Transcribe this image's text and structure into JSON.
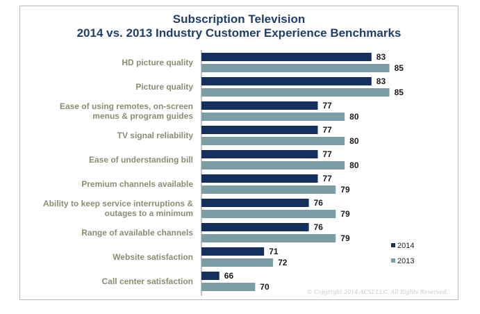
{
  "chart_data": {
    "type": "bar",
    "orientation": "horizontal",
    "title": "Subscription Television",
    "subtitle": "2014 vs. 2013 Industry Customer Experience Benchmarks",
    "categories": [
      [
        "HD picture quality"
      ],
      [
        "Picture quality"
      ],
      [
        "Ease of using remotes, on-screen",
        "menus & program guides"
      ],
      [
        "TV signal reliability"
      ],
      [
        "Ease of understanding bill"
      ],
      [
        "Premium channels available"
      ],
      [
        "Ability to keep service interruptions &",
        "outages to a minimum"
      ],
      [
        "Range of available channels"
      ],
      [
        "Website satisfaction"
      ],
      [
        "Call center satisfaction"
      ]
    ],
    "series": [
      {
        "name": "2014",
        "color": "#13305e",
        "values": [
          83,
          83,
          77,
          77,
          77,
          77,
          76,
          76,
          71,
          66
        ]
      },
      {
        "name": "2013",
        "color": "#7b9ea6",
        "values": [
          85,
          85,
          80,
          80,
          80,
          79,
          79,
          79,
          72,
          70
        ]
      }
    ],
    "xlim": [
      64,
      90
    ],
    "grid": false,
    "legend_position": "bottom-right",
    "copyright": "© Copyright 2014 ACSI LLC. All Rights Reserved."
  }
}
